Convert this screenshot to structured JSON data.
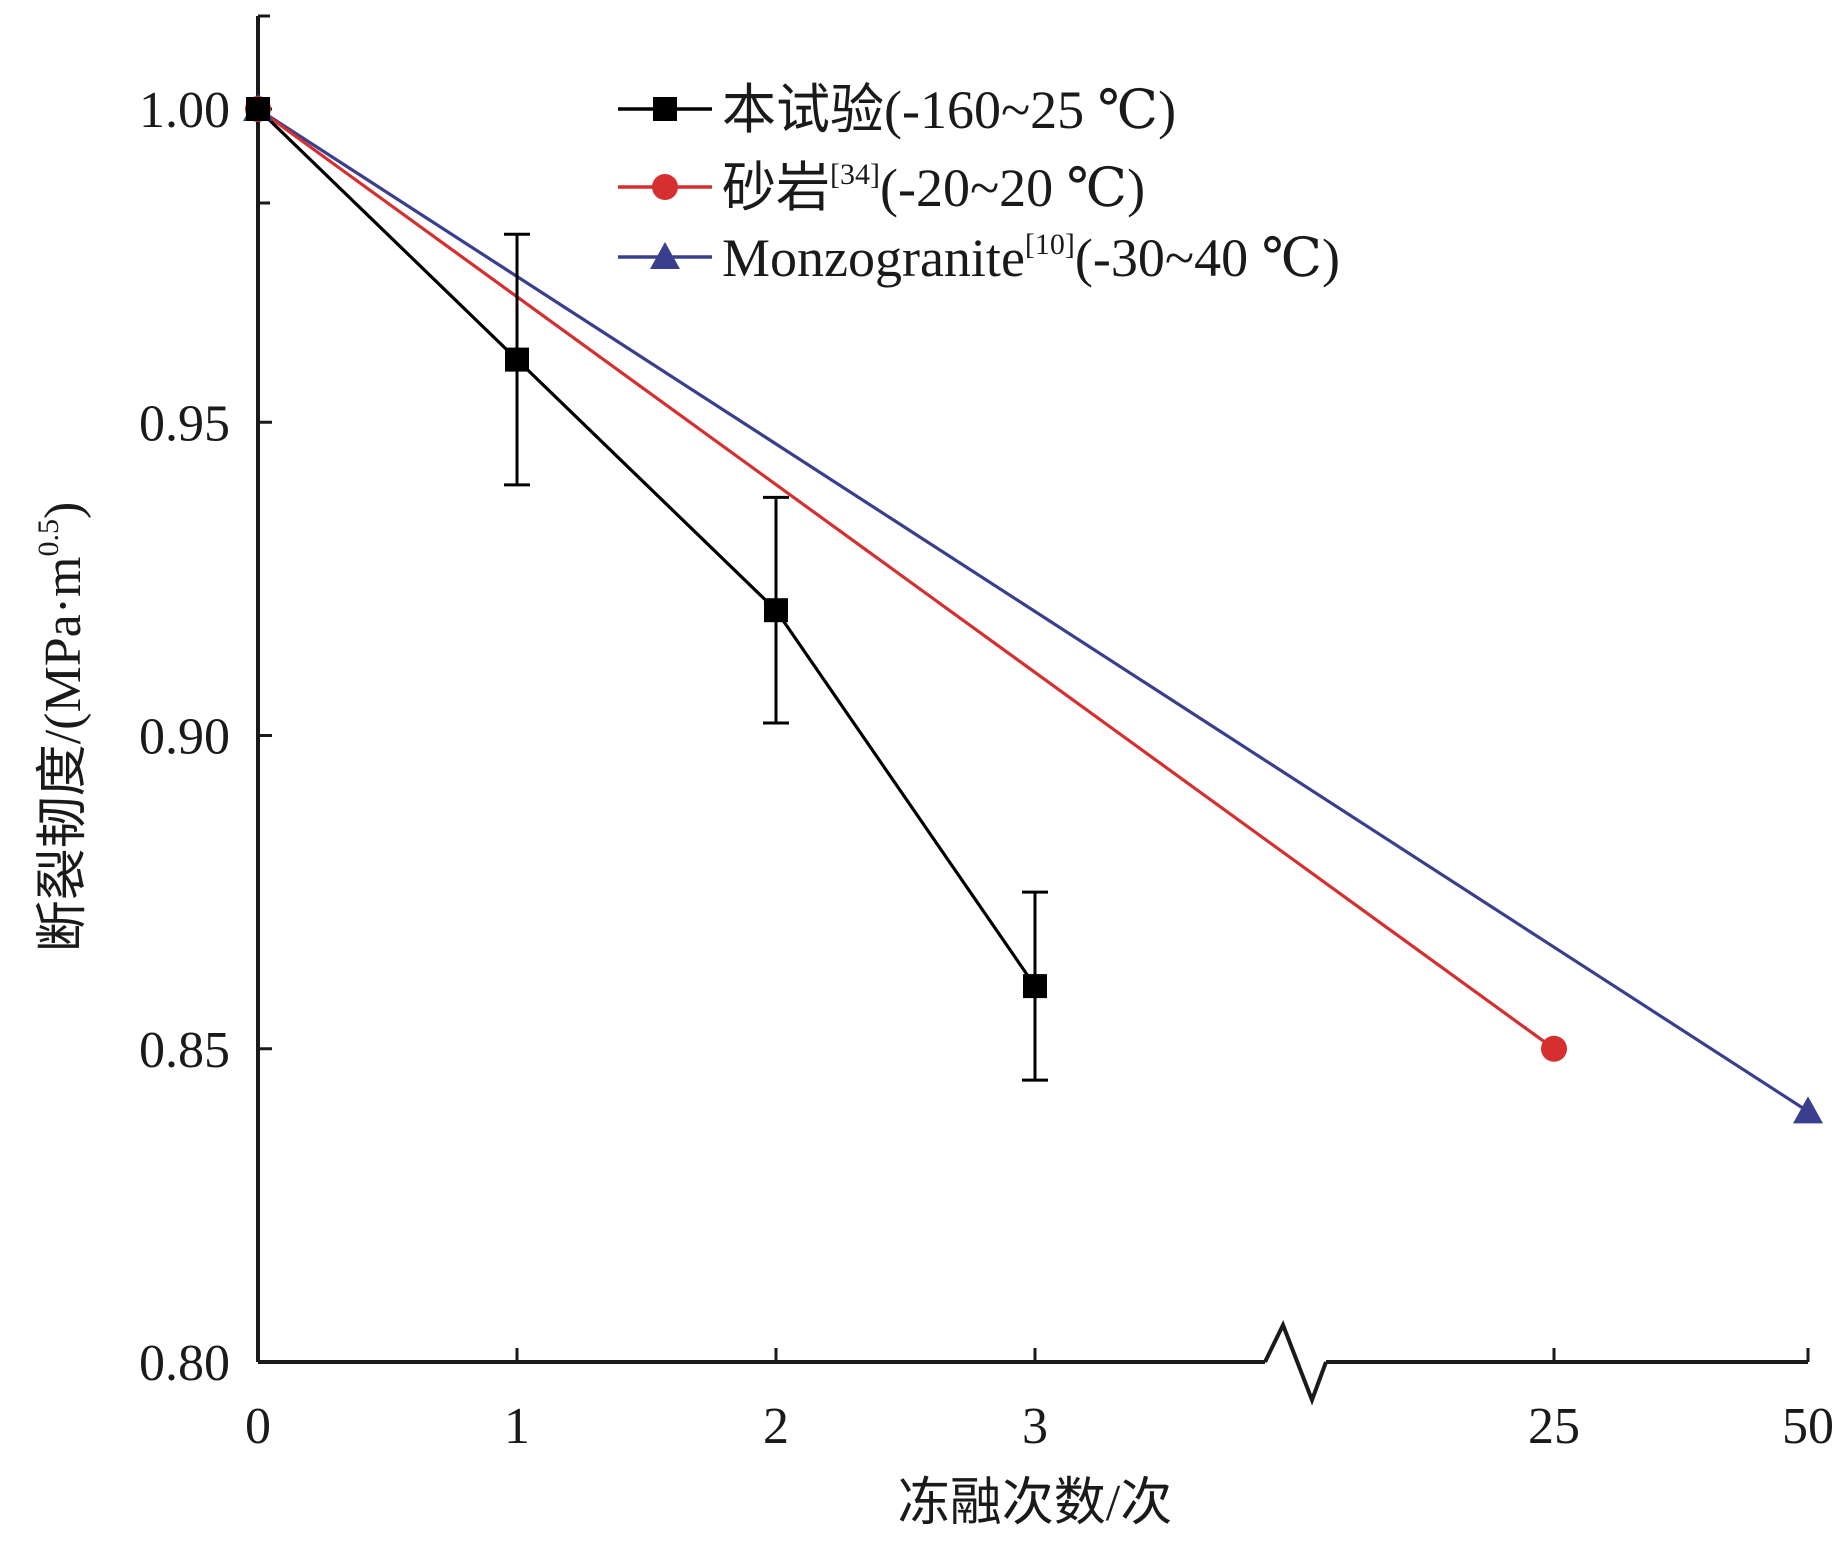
{
  "chart_data": {
    "type": "line",
    "x_tick_labels": [
      "0",
      "1",
      "2",
      "3",
      "25",
      "50"
    ],
    "x_axis_break": "between 3 and 25",
    "xlabel": "冻融次数/次",
    "ylabel_main": "断裂韧度/(MPa·m",
    "ylabel_sup": "0.5",
    "ylabel_close": ")",
    "ylim": [
      0.8,
      1.02
    ],
    "y_ticks": [
      0.8,
      0.85,
      0.9,
      0.95,
      1.0
    ],
    "y_tick_labels": [
      "0.80",
      "0.85",
      "0.90",
      "0.95",
      "1.00"
    ],
    "legend_position": "top-center",
    "grid": false,
    "series": [
      {
        "name_main": "本试验(-160~25 ℃)",
        "name_sup": "",
        "name_tail": "",
        "color": "#000000",
        "marker": "square",
        "points": [
          {
            "x": 0,
            "y": 1.0
          },
          {
            "x": 1,
            "y": 0.96,
            "err": 0.02
          },
          {
            "x": 2,
            "y": 0.92,
            "err": 0.018
          },
          {
            "x": 3,
            "y": 0.86,
            "err": 0.015
          }
        ]
      },
      {
        "name_main": "砂岩",
        "name_sup": "[34]",
        "name_tail": "(-20~20 ℃)",
        "color": "#d62f2f",
        "marker": "circle",
        "points": [
          {
            "x": 0,
            "y": 1.0
          },
          {
            "x": 25,
            "y": 0.85
          }
        ]
      },
      {
        "name_main": "Monzogranite",
        "name_sup": "[10]",
        "name_tail": "(-30~40 ℃)",
        "color": "#3a3e8f",
        "marker": "triangle",
        "points": [
          {
            "x": 0,
            "y": 1.0
          },
          {
            "x": 50,
            "y": 0.84
          }
        ]
      }
    ]
  }
}
